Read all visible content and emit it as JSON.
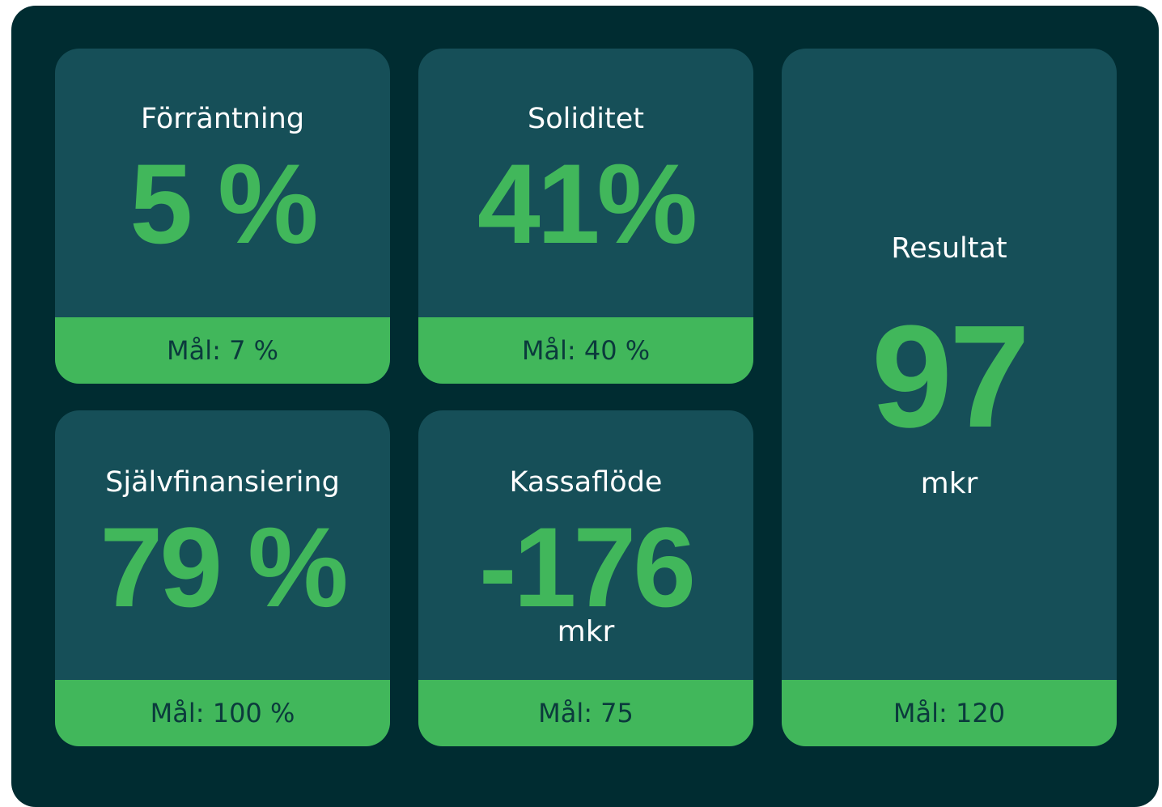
{
  "cards": [
    {
      "title": "Förräntning",
      "value": "5 %",
      "goal": "Mål: 7 %"
    },
    {
      "title": "Soliditet",
      "value": "41%",
      "goal": "Mål: 40 %"
    },
    {
      "title": "Resultat",
      "value": "97",
      "unit": "mkr",
      "goal": "Mål: 120"
    },
    {
      "title": "Självfinansiering",
      "value": "79 %",
      "goal": "Mål: 100 %"
    },
    {
      "title": "Kassaflöde",
      "value": "-176",
      "unit": "mkr",
      "goal": "Mål: 75"
    }
  ]
}
